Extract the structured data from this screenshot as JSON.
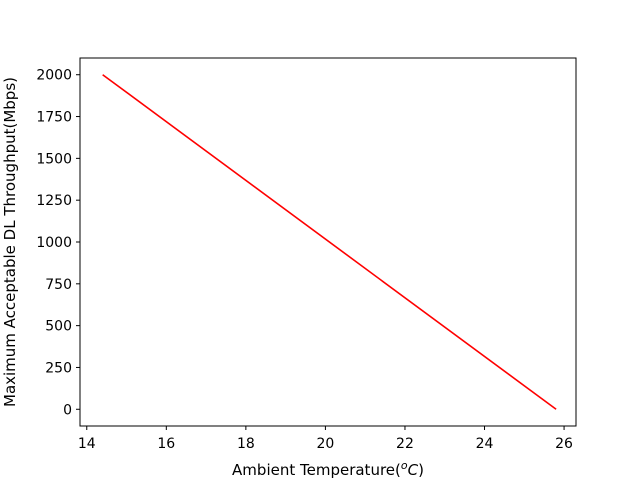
{
  "chart_data": {
    "type": "line",
    "title": "",
    "xlabel": "Ambient Temperature(",
    "xlabel_unit": "o",
    "xlabel_unit_letter": "C",
    "xlabel_close": ")",
    "ylabel": "Maximum Acceptable DL Throughput(Mbps)",
    "xlim": [
      13.83,
      26.3
    ],
    "ylim": [
      -100,
      2100
    ],
    "xticks": [
      14,
      16,
      18,
      20,
      22,
      24,
      26
    ],
    "yticks": [
      0,
      250,
      500,
      750,
      1000,
      1250,
      1500,
      1750,
      2000
    ],
    "grid": false,
    "series": [
      {
        "color": "#ff0000",
        "x": [
          14.4,
          25.8
        ],
        "y": [
          2000,
          0
        ]
      }
    ]
  }
}
